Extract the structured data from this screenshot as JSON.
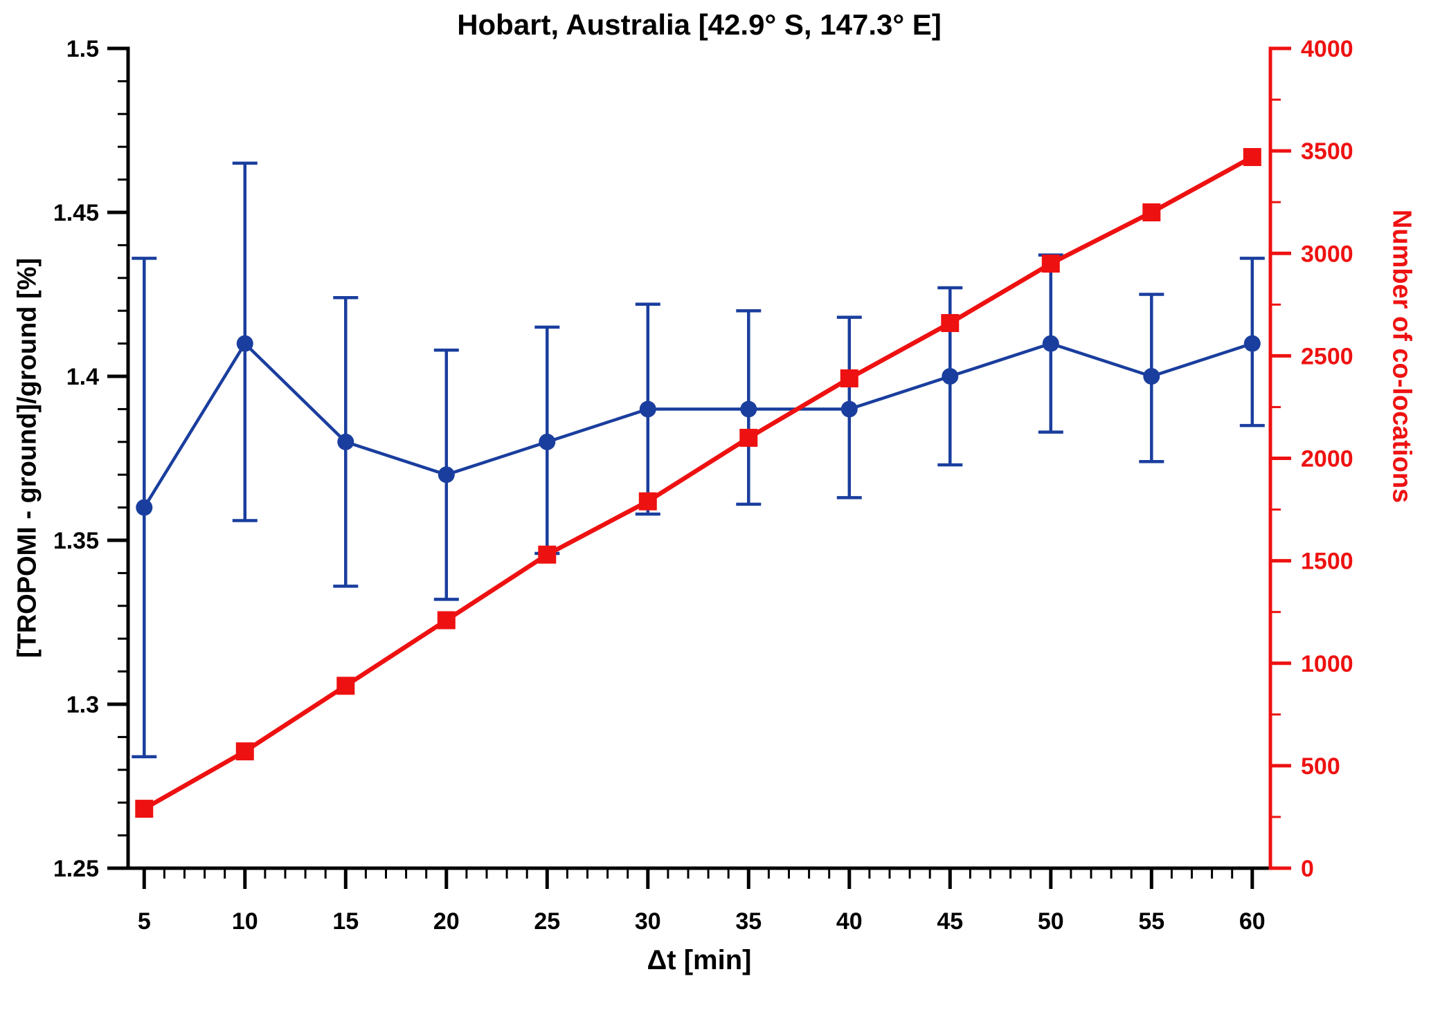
{
  "colors": {
    "axis": "#000000",
    "blue": "#1a3e9e",
    "red": "#ee1111"
  },
  "chart_data": {
    "type": "line",
    "title": "Hobart, Australia [42.9° S, 147.3° E]",
    "xlabel": "Δt [min]",
    "ylabel_left": "[TROPOMI - ground]/ground [%]",
    "ylabel_right": "Number of co-locations",
    "legend": "none",
    "grid": false,
    "x": [
      5,
      10,
      15,
      20,
      25,
      30,
      35,
      40,
      45,
      50,
      55,
      60
    ],
    "series": [
      {
        "name": "relative-difference",
        "axis": "left",
        "color": "#1a3e9e",
        "marker": "circle",
        "values": [
          1.36,
          1.41,
          1.38,
          1.37,
          1.38,
          1.39,
          1.39,
          1.39,
          1.4,
          1.41,
          1.4,
          1.41
        ],
        "err_low": [
          1.284,
          1.356,
          1.336,
          1.332,
          1.346,
          1.358,
          1.361,
          1.363,
          1.373,
          1.383,
          1.374,
          1.385
        ],
        "err_high": [
          1.436,
          1.465,
          1.424,
          1.408,
          1.415,
          1.422,
          1.42,
          1.418,
          1.427,
          1.437,
          1.425,
          1.436
        ]
      },
      {
        "name": "number-of-co-locations",
        "axis": "right",
        "color": "#ee1111",
        "marker": "square",
        "values": [
          290,
          570,
          890,
          1210,
          1530,
          1790,
          2100,
          2390,
          2660,
          2950,
          3200,
          3470
        ]
      }
    ],
    "x_axis": {
      "min": 4.2,
      "max": 60.9,
      "major_step": 5,
      "minor_step": 1,
      "tick_values": [
        5,
        10,
        15,
        20,
        25,
        30,
        35,
        40,
        45,
        50,
        55,
        60
      ],
      "tick_labels": [
        "5",
        "10",
        "15",
        "20",
        "25",
        "30",
        "35",
        "40",
        "45",
        "50",
        "55",
        "60"
      ]
    },
    "left_axis": {
      "min": 1.25,
      "max": 1.5,
      "major_step": 0.05,
      "minor_step": 0.01,
      "tick_values": [
        1.25,
        1.3,
        1.35,
        1.4,
        1.45,
        1.5
      ],
      "tick_labels": [
        "1.25",
        "1.3",
        "1.35",
        "1.4",
        "1.45",
        "1.5"
      ]
    },
    "right_axis": {
      "min": 0,
      "max": 4000,
      "major_step": 500,
      "minor_step": 250,
      "tick_values": [
        0,
        500,
        1000,
        1500,
        2000,
        2500,
        3000,
        3500,
        4000
      ],
      "tick_labels": [
        "0",
        "500",
        "1000",
        "1500",
        "2000",
        "2500",
        "3000",
        "3500",
        "4000"
      ]
    }
  }
}
